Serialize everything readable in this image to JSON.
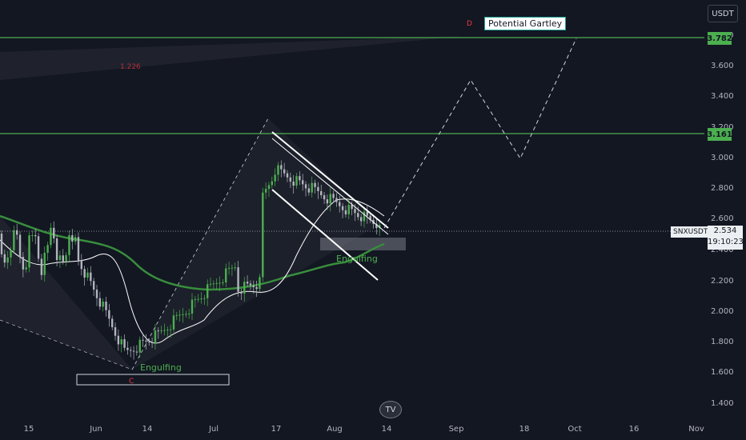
{
  "symbol": "SNXUSDT",
  "currency": "USDT",
  "last_price": "2.534",
  "countdown": "19:10:23",
  "price_axis": [
    "3.800",
    "3.600",
    "3.400",
    "3.200",
    "3.000",
    "2.800",
    "2.600",
    "2.400",
    "2.200",
    "2.000",
    "1.800",
    "1.600",
    "1.400"
  ],
  "time_axis": [
    "15",
    "Jun",
    "14",
    "Jul",
    "17",
    "Aug",
    "14",
    "Sep",
    "18",
    "Oct",
    "16",
    "Nov"
  ],
  "levels": [
    {
      "label": "3.782",
      "price": 3.782
    },
    {
      "label": "3.161",
      "price": 3.161
    }
  ],
  "annotations": {
    "pattern": "Potential Gartley",
    "engulfing_top": "Engulfing",
    "engulfing_bottom": "Engulfing",
    "fib": "1.226",
    "mark_top": "D",
    "mark_bottom": "C"
  },
  "logo": "TV",
  "colors": {
    "background": "#131722",
    "level_line": "#4caf50",
    "ma_slow": "#388e3c",
    "ma_fast": "#ffffff",
    "candle": "#4caf50"
  },
  "chart_data": {
    "type": "candlestick",
    "ylim": [
      1.4,
      3.8
    ],
    "projection_path": [
      {
        "x": "Aug 14",
        "y": 2.55
      },
      {
        "x": "Sep 2",
        "y": 3.52
      },
      {
        "x": "Sep 18",
        "y": 3.0
      },
      {
        "x": "Oct 2",
        "y": 3.82
      }
    ]
  }
}
